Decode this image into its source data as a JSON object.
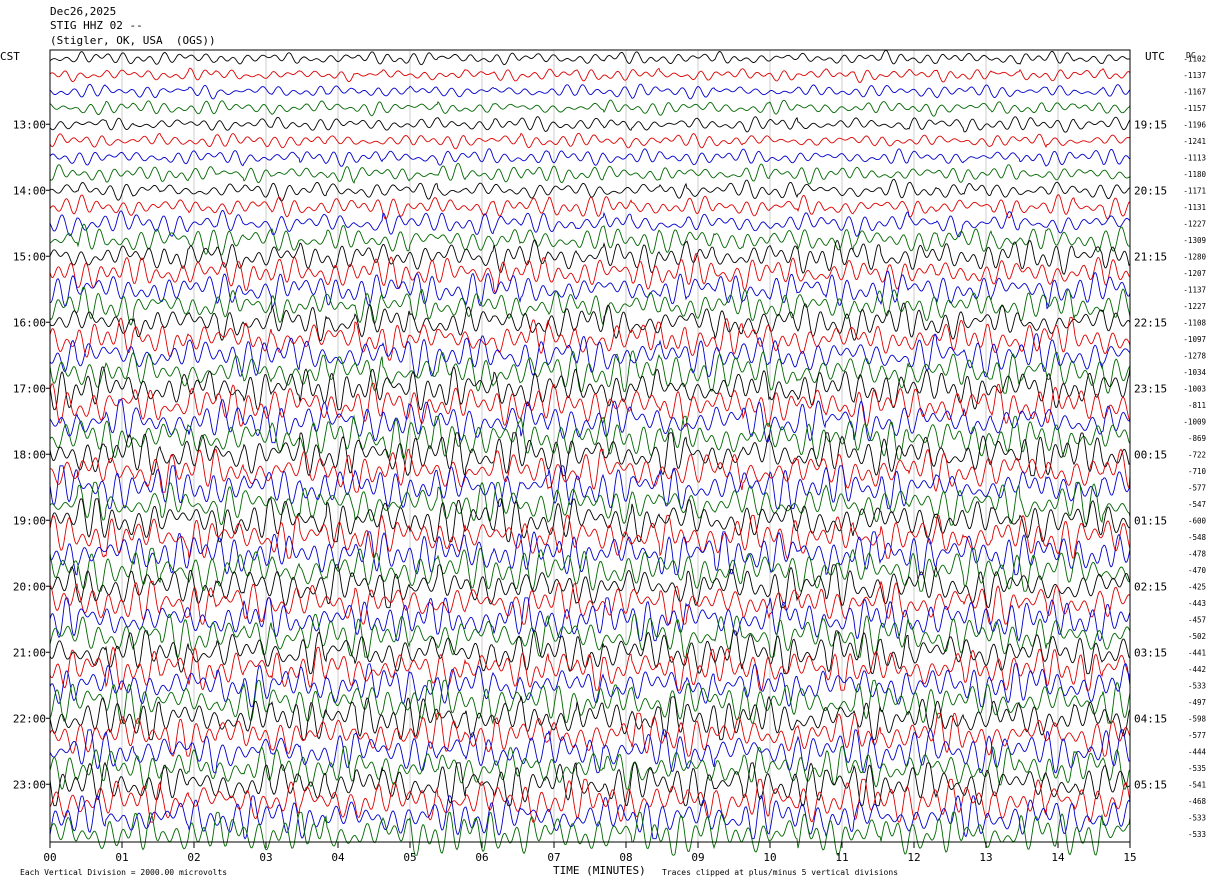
{
  "header": {
    "date": "Dec26,2025",
    "station": "STIG HHZ 02 --",
    "location": "(Stigler, OK, USA  (OGS))"
  },
  "labels": {
    "left_timezone": "CST",
    "right_timezone": "UTC",
    "dc_header": "DC",
    "x_axis_title": "TIME (MINUTES)",
    "scale_note": "Each Vertical Division = 2000.00 microvolts",
    "clip_note": "Traces clipped at plus/minus 5 vertical divisions"
  },
  "colors": {
    "trace_cycle": [
      "#000000",
      "#dd0000",
      "#0000cc",
      "#006600"
    ],
    "grid": "#aaaaaa"
  },
  "chart_data": {
    "type": "line",
    "title": "STIG HHZ 02 --",
    "xlabel": "TIME (MINUTES)",
    "xlim": [
      0,
      15
    ],
    "x_ticks": [
      "00",
      "01",
      "02",
      "03",
      "04",
      "05",
      "06",
      "07",
      "08",
      "09",
      "10",
      "11",
      "12",
      "13",
      "14",
      "15"
    ],
    "trace_minutes": 15,
    "left_hour_labels": [
      "13:00",
      "14:00",
      "15:00",
      "16:00",
      "17:00",
      "18:00",
      "19:00",
      "20:00",
      "21:00",
      "22:00",
      "23:00"
    ],
    "right_hour_labels": [
      "19:15",
      "20:15",
      "21:15",
      "22:15",
      "23:15",
      "00:15",
      "01:15",
      "02:15",
      "03:15",
      "04:15",
      "05:15"
    ],
    "first_labeled_row": 4,
    "rows_per_hour": 4,
    "dc_offsets": [
      -1102,
      -1137,
      -1167,
      -1157,
      -1196,
      -1241,
      -1113,
      -1180,
      -1171,
      -1131,
      -1227,
      -1309,
      -1280,
      -1207,
      -1137,
      -1227,
      -1108,
      -1097,
      -1278,
      -1034,
      -1003,
      -811,
      -1009,
      -869,
      -722,
      -710,
      -577,
      -547,
      -600,
      -548,
      -478,
      -470,
      -425,
      -443,
      -457,
      -502,
      -441,
      -442,
      -533,
      -497,
      -598,
      -577,
      -444,
      -535,
      -541,
      -468,
      -533,
      -533
    ],
    "relative_amplitude": [
      0.9,
      0.9,
      0.9,
      1.0,
      1.0,
      1.0,
      1.1,
      1.2,
      1.3,
      1.4,
      1.6,
      1.9,
      2.1,
      2.2,
      2.3,
      2.4,
      2.5,
      2.6,
      2.7,
      2.8,
      2.8,
      2.8,
      2.9,
      2.9,
      3.0,
      3.0,
      3.0,
      3.0,
      3.0,
      3.0,
      3.0,
      3.0,
      3.0,
      3.0,
      3.0,
      3.0,
      3.0,
      3.0,
      3.0,
      3.0,
      3.0,
      3.0,
      3.0,
      3.0,
      3.0,
      3.0,
      3.0,
      3.0
    ]
  }
}
